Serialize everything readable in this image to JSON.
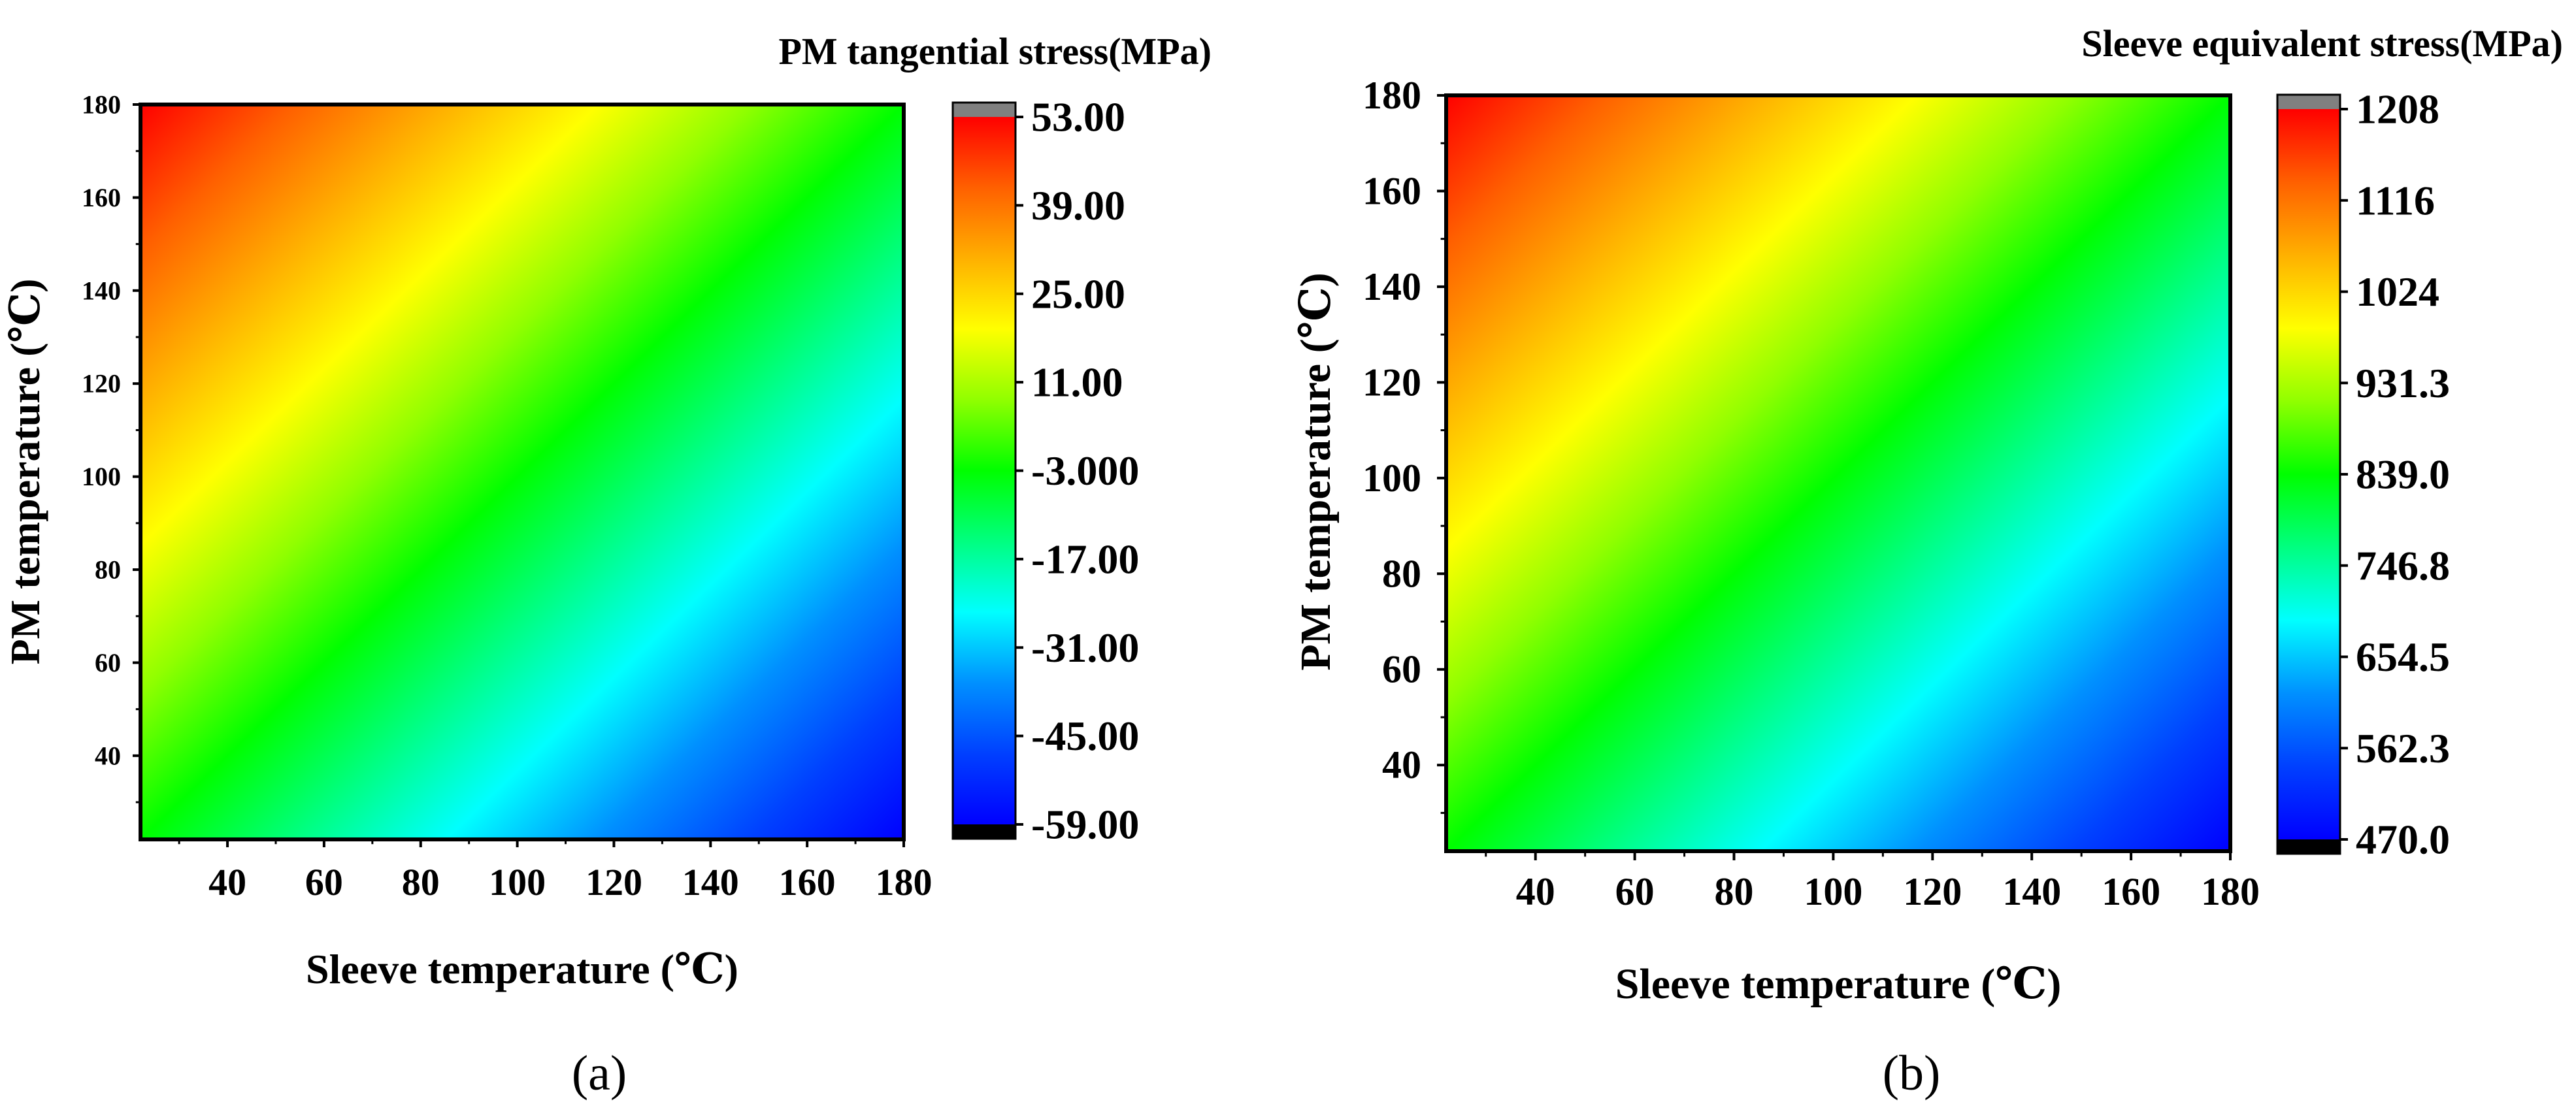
{
  "chart_data": [
    {
      "type": "heatmap",
      "panel_label": "(a)",
      "title": "PM tangential stress(MPa)",
      "xlabel": "Sleeve temperature (℃)",
      "ylabel": "PM temperature (℃)",
      "xlim": [
        22,
        180
      ],
      "ylim": [
        22,
        180
      ],
      "xticks": [
        40,
        60,
        80,
        100,
        120,
        140,
        160,
        180
      ],
      "yticks": [
        40,
        60,
        80,
        100,
        120,
        140,
        160,
        180
      ],
      "xtick_labels": [
        "40",
        "60",
        "80",
        "100",
        "120",
        "140",
        "160",
        "180"
      ],
      "ytick_labels": [
        "40",
        "60",
        "80",
        "100",
        "120",
        "140",
        "160",
        "180"
      ],
      "colorbar": {
        "min": -59.0,
        "max": 53.0,
        "ticks": [
          53.0,
          39.0,
          25.0,
          11.0,
          -3.0,
          -17.0,
          -31.0,
          -45.0,
          -59.0
        ],
        "tick_labels": [
          "53.00",
          "39.00",
          "25.00",
          "11.00",
          "-3.000",
          "-17.00",
          "-31.00",
          "-45.00",
          "-59.00"
        ]
      },
      "field": {
        "corners": {
          "x22_y22": -3.0,
          "x180_y22": -59.0,
          "x22_y180": 53.0,
          "x180_y180": -3.0
        },
        "note": "approximately linear: value = -3.0 + 0.354*(PM temperature - Sleeve temperature)"
      }
    },
    {
      "type": "heatmap",
      "panel_label": "(b)",
      "title": "Sleeve equivalent stress(MPa)",
      "xlabel": "Sleeve temperature (℃)",
      "ylabel": "PM temperature (℃)",
      "xlim": [
        22,
        180
      ],
      "ylim": [
        22,
        180
      ],
      "xticks": [
        40,
        60,
        80,
        100,
        120,
        140,
        160,
        180
      ],
      "yticks": [
        40,
        60,
        80,
        100,
        120,
        140,
        160,
        180
      ],
      "xtick_labels": [
        "40",
        "60",
        "80",
        "100",
        "120",
        "140",
        "160",
        "180"
      ],
      "ytick_labels": [
        "40",
        "60",
        "80",
        "100",
        "120",
        "140",
        "160",
        "180"
      ],
      "colorbar": {
        "min": 470.0,
        "max": 1208.0,
        "ticks": [
          1208,
          1116,
          1024,
          931.3,
          839.0,
          746.8,
          654.5,
          562.3,
          470.0
        ],
        "tick_labels": [
          "1208",
          "1116",
          "1024",
          "931.3",
          "839.0",
          "746.8",
          "654.5",
          "562.3",
          "470.0"
        ]
      },
      "field": {
        "corners": {
          "x22_y22": 839.0,
          "x180_y22": 470.0,
          "x22_y180": 1208.0,
          "x180_y180": 839.0
        },
        "note": "approximately linear: value = 839.0 + 2.335*(PM temperature - Sleeve temperature)"
      }
    }
  ]
}
